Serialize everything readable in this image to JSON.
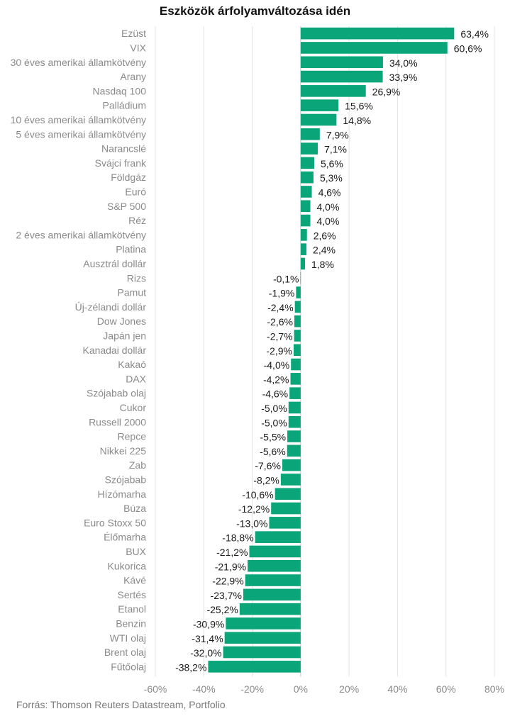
{
  "chart_data": {
    "type": "bar",
    "orientation": "horizontal",
    "title": "Eszközök árfolyamváltozása idén",
    "source": "Forrás: Thomson Reuters Datastream, Portfolio",
    "xlim": [
      -60,
      80
    ],
    "x_ticks": [
      -60,
      -40,
      -20,
      0,
      20,
      40,
      60,
      80
    ],
    "x_tick_labels": [
      "-60%",
      "-40%",
      "-20%",
      "0%",
      "20%",
      "40%",
      "60%",
      "80%"
    ],
    "grid": "vertical",
    "bar_color": "#0aa67a",
    "categories": [
      "Ezüst",
      "VIX",
      "30 éves amerikai államkötvény",
      "Arany",
      "Nasdaq 100",
      "Palládium",
      "10 éves amerikai államkötvény",
      "5 éves amerikai államkötvény",
      "Narancslé",
      "Svájci frank",
      "Földgáz",
      "Euró",
      "S&P 500",
      "Réz",
      "2 éves amerikai államkötvény",
      "Platina",
      "Ausztrál dollár",
      "Rizs",
      "Pamut",
      "Új-zélandi dollár",
      "Dow Jones",
      "Japán jen",
      "Kanadai dollár",
      "Kakaó",
      "DAX",
      "Szójabab olaj",
      "Cukor",
      "Russell 2000",
      "Repce",
      "Nikkei 225",
      "Zab",
      "Szójabab",
      "Hízómarha",
      "Búza",
      "Euro Stoxx 50",
      "Élőmarha",
      "BUX",
      "Kukorica",
      "Kávé",
      "Sertés",
      "Etanol",
      "Benzin",
      "WTI olaj",
      "Brent olaj",
      "Fűtőolaj"
    ],
    "values": [
      63.4,
      60.6,
      34.0,
      33.9,
      26.9,
      15.6,
      14.8,
      7.9,
      7.1,
      5.6,
      5.3,
      4.6,
      4.0,
      4.0,
      2.6,
      2.4,
      1.8,
      -0.1,
      -1.9,
      -2.4,
      -2.6,
      -2.7,
      -2.9,
      -4.0,
      -4.2,
      -4.6,
      -5.0,
      -5.0,
      -5.5,
      -5.6,
      -7.6,
      -8.2,
      -10.6,
      -12.2,
      -13.0,
      -18.8,
      -21.2,
      -21.9,
      -22.9,
      -23.7,
      -25.2,
      -30.9,
      -31.4,
      -32.0,
      -38.2
    ],
    "value_labels": [
      "63,4%",
      "60,6%",
      "34,0%",
      "33,9%",
      "26,9%",
      "15,6%",
      "14,8%",
      "7,9%",
      "7,1%",
      "5,6%",
      "5,3%",
      "4,6%",
      "4,0%",
      "4,0%",
      "2,6%",
      "2,4%",
      "1,8%",
      "-0,1%",
      "-1,9%",
      "-2,4%",
      "-2,6%",
      "-2,7%",
      "-2,9%",
      "-4,0%",
      "-4,2%",
      "-4,6%",
      "-5,0%",
      "-5,0%",
      "-5,5%",
      "-5,6%",
      "-7,6%",
      "-8,2%",
      "-10,6%",
      "-12,2%",
      "-13,0%",
      "-18,8%",
      "-21,2%",
      "-21,9%",
      "-22,9%",
      "-23,7%",
      "-25,2%",
      "-30,9%",
      "-31,4%",
      "-32,0%",
      "-38,2%"
    ]
  }
}
